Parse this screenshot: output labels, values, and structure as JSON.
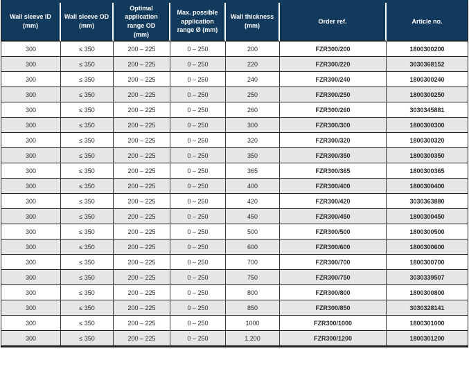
{
  "colors": {
    "header_bg": "#123a5c",
    "header_text": "#ffffff",
    "row_bg": "#ffffff",
    "row_alt_bg": "#e6e6e6",
    "border_dark": "#1f1f1f",
    "body_text": "#262626"
  },
  "table": {
    "columns": [
      {
        "name": "wall-sleeve-id",
        "lines": [
          "Wall sleeve ID",
          "(mm)"
        ]
      },
      {
        "name": "wall-sleeve-od",
        "lines": [
          "Wall sleeve OD",
          "(mm)"
        ]
      },
      {
        "name": "optimal-application-range-od",
        "lines": [
          "Optimal",
          "application",
          "range OD",
          "(mm)"
        ]
      },
      {
        "name": "max-possible-application-range",
        "lines": [
          "Max. possible",
          "application",
          "range Ø (mm)"
        ]
      },
      {
        "name": "wall-thickness",
        "lines": [
          "Wall thickness",
          "(mm)"
        ]
      },
      {
        "name": "order-ref",
        "lines": [
          "Order ref."
        ]
      },
      {
        "name": "article-no",
        "lines": [
          "Article no."
        ]
      }
    ],
    "rows": [
      [
        "300",
        "≤ 350",
        "200 – 225",
        "0 – 250",
        "200",
        "FZR300/200",
        "1800300200"
      ],
      [
        "300",
        "≤ 350",
        "200 – 225",
        "0 – 250",
        "220",
        "FZR300/220",
        "3030368152"
      ],
      [
        "300",
        "≤ 350",
        "200 – 225",
        "0 – 250",
        "240",
        "FZR300/240",
        "1800300240"
      ],
      [
        "300",
        "≤ 350",
        "200 – 225",
        "0 – 250",
        "250",
        "FZR300/250",
        "1800300250"
      ],
      [
        "300",
        "≤ 350",
        "200 – 225",
        "0 – 250",
        "260",
        "FZR300/260",
        "3030345881"
      ],
      [
        "300",
        "≤ 350",
        "200 – 225",
        "0 – 250",
        "300",
        "FZR300/300",
        "1800300300"
      ],
      [
        "300",
        "≤ 350",
        "200 – 225",
        "0 – 250",
        "320",
        "FZR300/320",
        "1800300320"
      ],
      [
        "300",
        "≤ 350",
        "200 – 225",
        "0 – 250",
        "350",
        "FZR300/350",
        "1800300350"
      ],
      [
        "300",
        "≤ 350",
        "200 – 225",
        "0 – 250",
        "365",
        "FZR300/365",
        "1800300365"
      ],
      [
        "300",
        "≤ 350",
        "200 – 225",
        "0 – 250",
        "400",
        "FZR300/400",
        "1800300400"
      ],
      [
        "300",
        "≤ 350",
        "200 – 225",
        "0 – 250",
        "420",
        "FZR300/420",
        "3030363880"
      ],
      [
        "300",
        "≤ 350",
        "200 – 225",
        "0 – 250",
        "450",
        "FZR300/450",
        "1800300450"
      ],
      [
        "300",
        "≤ 350",
        "200 – 225",
        "0 – 250",
        "500",
        "FZR300/500",
        "1800300500"
      ],
      [
        "300",
        "≤ 350",
        "200 – 225",
        "0 – 250",
        "600",
        "FZR300/600",
        "1800300600"
      ],
      [
        "300",
        "≤ 350",
        "200 – 225",
        "0 – 250",
        "700",
        "FZR300/700",
        "1800300700"
      ],
      [
        "300",
        "≤ 350",
        "200 – 225",
        "0 – 250",
        "750",
        "FZR300/750",
        "3030339507"
      ],
      [
        "300",
        "≤ 350",
        "200 – 225",
        "0 – 250",
        "800",
        "FZR300/800",
        "1800300800"
      ],
      [
        "300",
        "≤ 350",
        "200 – 225",
        "0 – 250",
        "850",
        "FZR300/850",
        "3030328141"
      ],
      [
        "300",
        "≤ 350",
        "200 – 225",
        "0 – 250",
        "1000",
        "FZR300/1000",
        "1800301000"
      ],
      [
        "300",
        "≤ 350",
        "200 – 225",
        "0 – 250",
        "1.200",
        "FZR300/1200",
        "1800301200"
      ]
    ]
  }
}
